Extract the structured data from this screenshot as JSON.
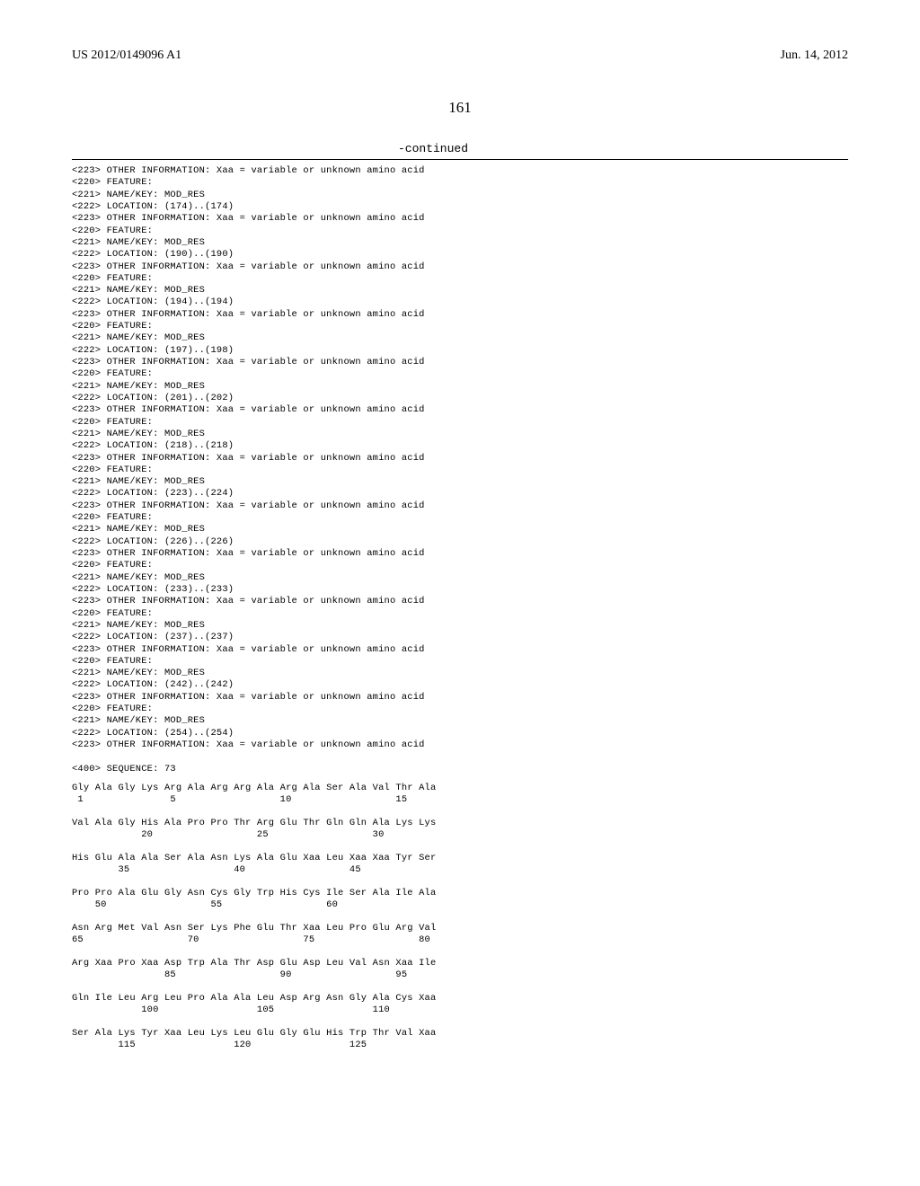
{
  "header": {
    "pub_number": "US 2012/0149096 A1",
    "pub_date": "Jun. 14, 2012"
  },
  "page_number": "161",
  "continued_label": "-continued",
  "rule_color": "#000000",
  "fonts": {
    "body_family": "Times New Roman",
    "mono_family": "Courier New",
    "header_size_pt": 11,
    "pagenum_size_pt": 13,
    "listing_size_pt": 8
  },
  "features": [
    {
      "other_info": "Xaa = variable or unknown amino acid",
      "name_key": "MOD_RES",
      "location": "(174)..(174)"
    },
    {
      "other_info": "Xaa = variable or unknown amino acid",
      "name_key": "MOD_RES",
      "location": "(190)..(190)"
    },
    {
      "other_info": "Xaa = variable or unknown amino acid",
      "name_key": "MOD_RES",
      "location": "(194)..(194)"
    },
    {
      "other_info": "Xaa = variable or unknown amino acid",
      "name_key": "MOD_RES",
      "location": "(197)..(198)"
    },
    {
      "other_info": "Xaa = variable or unknown amino acid",
      "name_key": "MOD_RES",
      "location": "(201)..(202)"
    },
    {
      "other_info": "Xaa = variable or unknown amino acid",
      "name_key": "MOD_RES",
      "location": "(218)..(218)"
    },
    {
      "other_info": "Xaa = variable or unknown amino acid",
      "name_key": "MOD_RES",
      "location": "(223)..(224)"
    },
    {
      "other_info": "Xaa = variable or unknown amino acid",
      "name_key": "MOD_RES",
      "location": "(226)..(226)"
    },
    {
      "other_info": "Xaa = variable or unknown amino acid",
      "name_key": "MOD_RES",
      "location": "(233)..(233)"
    },
    {
      "other_info": "Xaa = variable or unknown amino acid",
      "name_key": "MOD_RES",
      "location": "(237)..(237)"
    },
    {
      "other_info": "Xaa = variable or unknown amino acid",
      "name_key": "MOD_RES",
      "location": "(242)..(242)"
    },
    {
      "other_info": "Xaa = variable or unknown amino acid",
      "name_key": "MOD_RES",
      "location": "(254)..(254)"
    }
  ],
  "first_other_info": "Xaa = variable or unknown amino acid",
  "labels": {
    "other_info_prefix": "<223> OTHER INFORMATION: ",
    "feature_line": "<220> FEATURE:",
    "name_key_prefix": "<221> NAME/KEY: ",
    "location_prefix": "<222> LOCATION: ",
    "sequence_prefix": "<400> SEQUENCE: "
  },
  "sequence_number": "73",
  "sequence_rows": [
    {
      "res": "Gly Ala Gly Lys Arg Ala Arg Arg Ala Arg Ala Ser Ala Val Thr Ala",
      "nums": [
        {
          "n": "1",
          "under": 1
        },
        {
          "n": "5",
          "under": 5
        },
        {
          "n": "10",
          "under": 10
        },
        {
          "n": "15",
          "under": 15
        }
      ]
    },
    {
      "res": "Val Ala Gly His Ala Pro Pro Thr Arg Glu Thr Gln Gln Ala Lys Lys",
      "nums": [
        {
          "n": "20",
          "under": 4
        },
        {
          "n": "25",
          "under": 9
        },
        {
          "n": "30",
          "under": 14
        }
      ]
    },
    {
      "res": "His Glu Ala Ala Ser Ala Asn Lys Ala Glu Xaa Leu Xaa Xaa Tyr Ser",
      "nums": [
        {
          "n": "35",
          "under": 3
        },
        {
          "n": "40",
          "under": 8
        },
        {
          "n": "45",
          "under": 13
        }
      ]
    },
    {
      "res": "Pro Pro Ala Glu Gly Asn Cys Gly Trp His Cys Ile Ser Ala Ile Ala",
      "nums": [
        {
          "n": "50",
          "under": 2
        },
        {
          "n": "55",
          "under": 7
        },
        {
          "n": "60",
          "under": 12
        }
      ]
    },
    {
      "res": "Asn Arg Met Val Asn Ser Lys Phe Glu Thr Xaa Leu Pro Glu Arg Val",
      "nums": [
        {
          "n": "65",
          "under": 1
        },
        {
          "n": "70",
          "under": 6
        },
        {
          "n": "75",
          "under": 11
        },
        {
          "n": "80",
          "under": 16
        }
      ]
    },
    {
      "res": "Arg Xaa Pro Xaa Asp Trp Ala Thr Asp Glu Asp Leu Val Asn Xaa Ile",
      "nums": [
        {
          "n": "85",
          "under": 5
        },
        {
          "n": "90",
          "under": 10
        },
        {
          "n": "95",
          "under": 15
        }
      ]
    },
    {
      "res": "Gln Ile Leu Arg Leu Pro Ala Ala Leu Asp Arg Asn Gly Ala Cys Xaa",
      "nums": [
        {
          "n": "100",
          "under": 4
        },
        {
          "n": "105",
          "under": 9
        },
        {
          "n": "110",
          "under": 14
        }
      ]
    },
    {
      "res": "Ser Ala Lys Tyr Xaa Leu Lys Leu Glu Gly Glu His Trp Thr Val Xaa",
      "nums": [
        {
          "n": "115",
          "under": 3
        },
        {
          "n": "120",
          "under": 8
        },
        {
          "n": "125",
          "under": 13
        }
      ]
    }
  ]
}
